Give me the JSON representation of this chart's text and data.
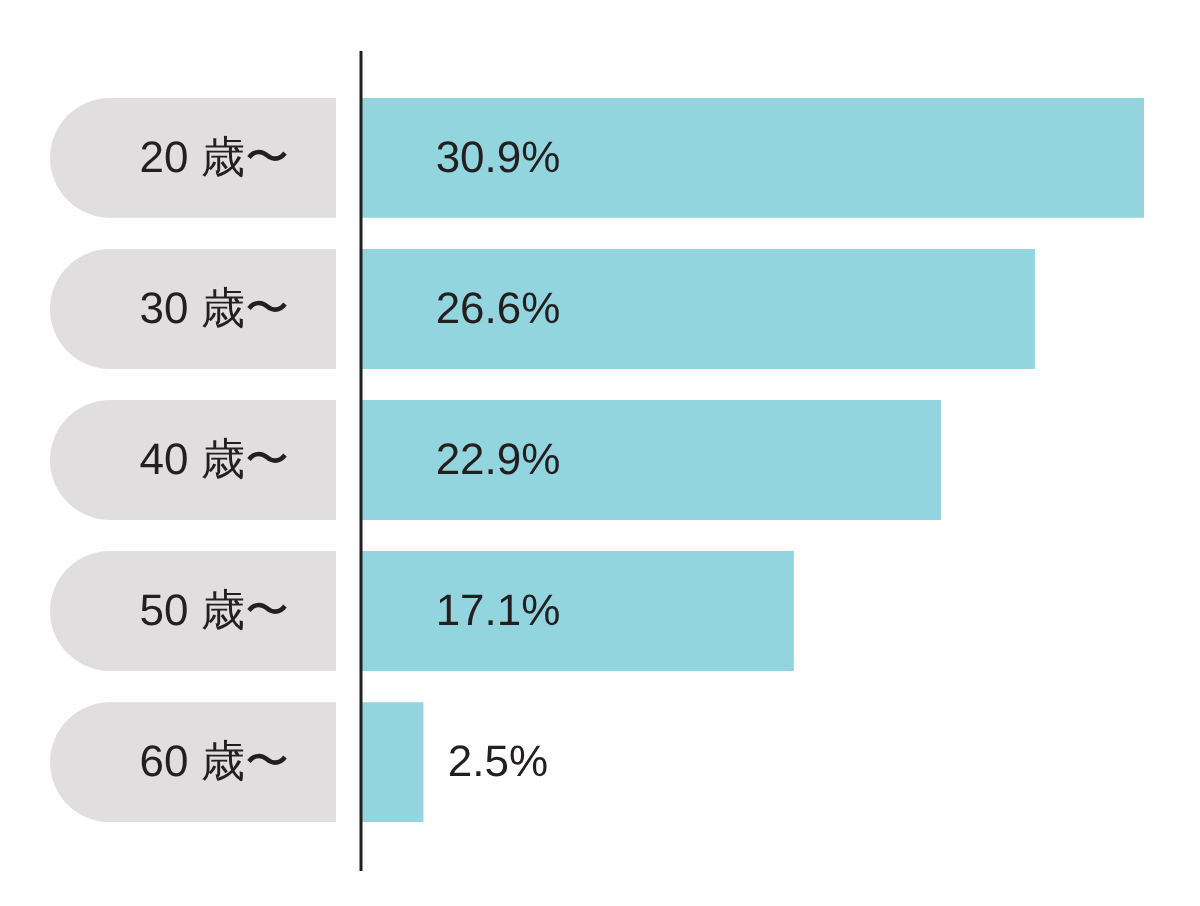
{
  "chart_data": {
    "type": "bar",
    "orientation": "horizontal",
    "categories": [
      "20 歳〜",
      "30 歳〜",
      "40 歳〜",
      "50 歳〜",
      "60 歳〜"
    ],
    "values": [
      30.9,
      26.6,
      22.9,
      17.1,
      2.5
    ],
    "color": "#93d5de",
    "value_labels": [
      "30.9%",
      "26.6%",
      "22.9%",
      "17.1%",
      "2.5%"
    ]
  }
}
